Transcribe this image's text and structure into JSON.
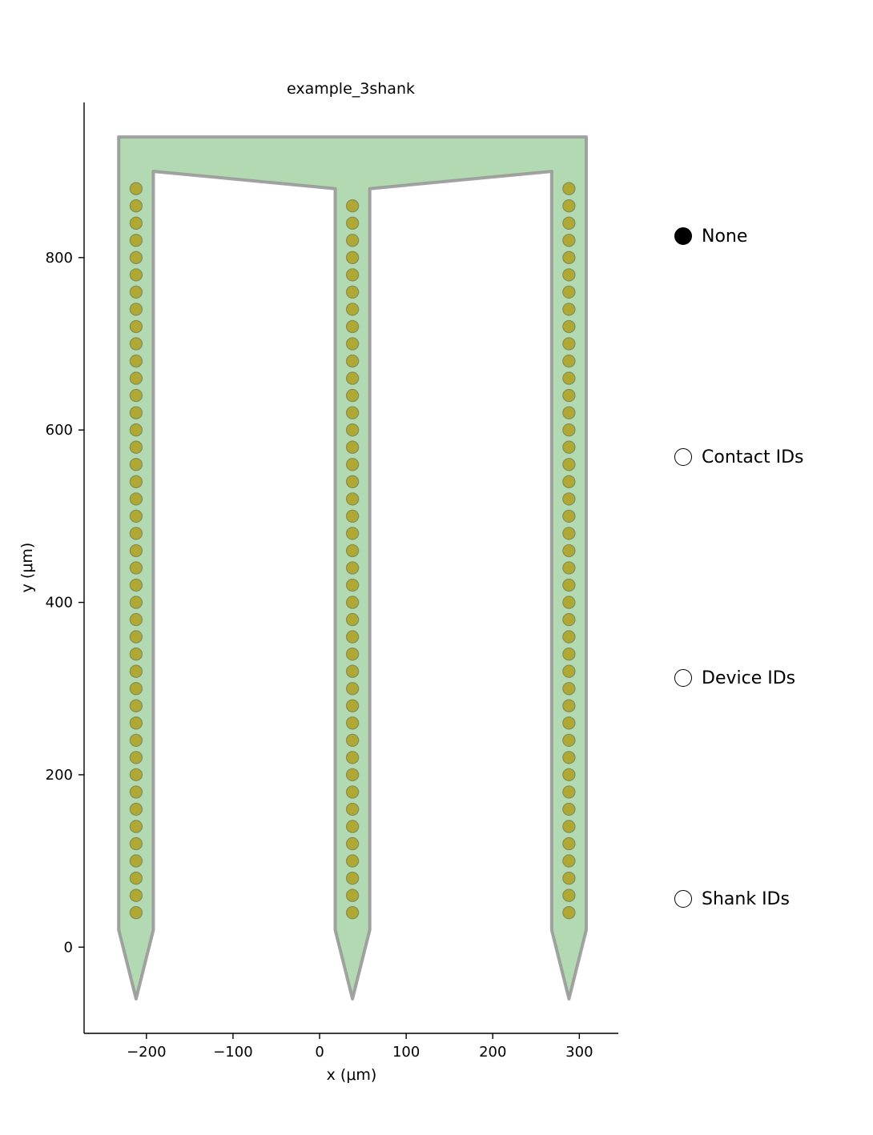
{
  "chart_data": {
    "type": "scatter",
    "title": "example_3shank",
    "xlabel": "x (μm)",
    "ylabel": "y (μm)",
    "xlim": [
      -272,
      345
    ],
    "ylim": [
      -100,
      980
    ],
    "xticks": [
      -200,
      -100,
      0,
      100,
      200,
      300
    ],
    "xtick_labels": [
      "−200",
      "−100",
      "0",
      "100",
      "200",
      "300"
    ],
    "yticks": [
      0,
      200,
      400,
      600,
      800
    ],
    "yticklabels": [
      "0",
      "200",
      "400",
      "600",
      "800"
    ],
    "probe_outline": [
      [
        -232,
        940
      ],
      [
        308,
        940
      ],
      [
        308,
        20
      ],
      [
        288,
        -60
      ],
      [
        268,
        20
      ],
      [
        268,
        900
      ],
      [
        58,
        880
      ],
      [
        58,
        20
      ],
      [
        38,
        -60
      ],
      [
        18,
        20
      ],
      [
        18,
        880
      ],
      [
        -192,
        900
      ],
      [
        -192,
        20
      ],
      [
        -212,
        -60
      ],
      [
        -232,
        20
      ]
    ],
    "probe_color": "#b2d9b2",
    "outline_color": "#999999",
    "contact_color": "#b0a832",
    "contact_radius": 7,
    "shanks": [
      {
        "x": -212,
        "y_start": 40,
        "y_end": 880,
        "y_step": 20
      },
      {
        "x": 38,
        "y_start": 40,
        "y_end": 860,
        "y_step": 20
      },
      {
        "x": 288,
        "y_start": 40,
        "y_end": 880,
        "y_step": 20
      }
    ],
    "grid": false
  },
  "widget": {
    "options": [
      {
        "label": "None",
        "selected": true
      },
      {
        "label": "Contact IDs",
        "selected": false
      },
      {
        "label": "Device IDs",
        "selected": false
      },
      {
        "label": "Shank IDs",
        "selected": false
      }
    ]
  }
}
